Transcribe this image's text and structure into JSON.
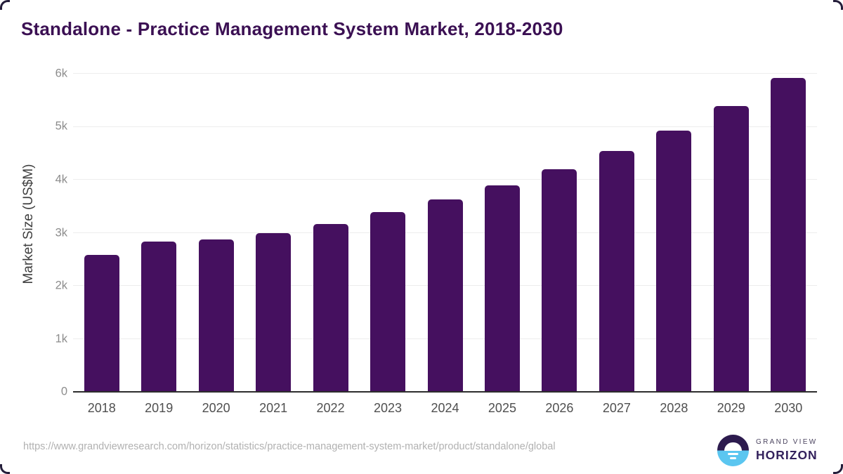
{
  "title": "Standalone - Practice Management System Market, 2018-2030",
  "colors": {
    "bar": "#45105f",
    "title_text": "#3b1053",
    "gridline": "#ededed",
    "axis_line": "#2d2d2d",
    "logo_circle_top": "#2d1b4e",
    "logo_circle_bottom": "#5bc6f0"
  },
  "chart_data": {
    "type": "bar",
    "title": "Standalone - Practice Management System Market, 2018-2030",
    "xlabel": "",
    "ylabel": "Market Size (US$M)",
    "ylim": [
      0,
      6000
    ],
    "grid": "horizontal",
    "legend_position": "none",
    "categories": [
      "2018",
      "2019",
      "2020",
      "2021",
      "2022",
      "2023",
      "2024",
      "2025",
      "2026",
      "2027",
      "2028",
      "2029",
      "2030"
    ],
    "values": [
      2580,
      2830,
      2870,
      2990,
      3170,
      3390,
      3630,
      3890,
      4200,
      4540,
      4930,
      5390,
      5920
    ],
    "yticks": [
      {
        "label": "0",
        "value": 0
      },
      {
        "label": "1k",
        "value": 1000
      },
      {
        "label": "2k",
        "value": 2000
      },
      {
        "label": "3k",
        "value": 3000
      },
      {
        "label": "4k",
        "value": 4000
      },
      {
        "label": "5k",
        "value": 5000
      },
      {
        "label": "6k",
        "value": 6000
      }
    ]
  },
  "footer": {
    "source_url": "https://www.grandviewresearch.com/horizon/statistics/practice-management-system-market/product/standalone/global",
    "logo": {
      "top_text": "GRAND VIEW",
      "bottom_text": "HORIZON"
    }
  }
}
